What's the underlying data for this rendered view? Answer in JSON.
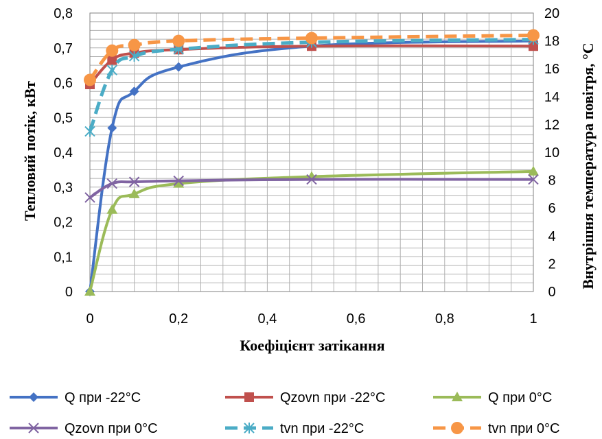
{
  "chart_data": {
    "type": "line",
    "xlabel": "Коефіцієнт затікання",
    "ylabel": "Тепловий потік, кВт",
    "y2label": "Внутрішня температура повітря, °С",
    "xlim": [
      0,
      1
    ],
    "ylim": [
      0,
      0.8
    ],
    "y2lim": [
      0,
      20
    ],
    "x_ticks": [
      "0",
      "0,2",
      "0,4",
      "0,6",
      "0,8",
      "1"
    ],
    "y_ticks": [
      "0",
      "0,1",
      "0,2",
      "0,3",
      "0,4",
      "0,5",
      "0,6",
      "0,7",
      "0,8"
    ],
    "y2_ticks": [
      "0",
      "2",
      "4",
      "6",
      "8",
      "10",
      "12",
      "14",
      "16",
      "18",
      "20"
    ],
    "grid": true,
    "legend_position": "bottom",
    "series": [
      {
        "name": "Q при -22°С",
        "axis": "left",
        "color": "#4472C4",
        "marker": "diamond",
        "dash": "solid",
        "x": [
          0,
          0.05,
          0.1,
          0.2,
          0.5,
          1
        ],
        "y": [
          0,
          0.47,
          0.575,
          0.645,
          0.705,
          0.72
        ]
      },
      {
        "name": "Qzovn при -22°С",
        "axis": "left",
        "color": "#C0504D",
        "marker": "square",
        "dash": "solid",
        "x": [
          0,
          0.05,
          0.1,
          0.2,
          0.5,
          1
        ],
        "y": [
          0.595,
          0.665,
          0.685,
          0.695,
          0.705,
          0.705
        ]
      },
      {
        "name": "Q при 0°С",
        "axis": "left",
        "color": "#9BBB59",
        "marker": "triangle",
        "dash": "solid",
        "x": [
          0,
          0.05,
          0.1,
          0.2,
          0.5,
          1
        ],
        "y": [
          0,
          0.235,
          0.28,
          0.31,
          0.33,
          0.345
        ]
      },
      {
        "name": "Qzovn при 0°С",
        "axis": "left",
        "color": "#8064A2",
        "marker": "x",
        "dash": "solid",
        "x": [
          0,
          0.05,
          0.1,
          0.2,
          0.5,
          1
        ],
        "y": [
          0.27,
          0.31,
          0.315,
          0.318,
          0.322,
          0.322
        ]
      },
      {
        "name": "tvn при -22°С",
        "axis": "right",
        "color": "#4BACC6",
        "marker": "star",
        "dash": "dash",
        "x": [
          0,
          0.05,
          0.1,
          0.2,
          0.5,
          1
        ],
        "y": [
          11.5,
          15.9,
          16.9,
          17.4,
          17.9,
          18.1
        ]
      },
      {
        "name": "tvn при 0°С",
        "axis": "right",
        "color": "#F79646",
        "marker": "circle",
        "dash": "dash",
        "x": [
          0,
          0.05,
          0.1,
          0.2,
          0.5,
          1
        ],
        "y": [
          15.2,
          17.3,
          17.7,
          18.0,
          18.2,
          18.4
        ]
      }
    ]
  }
}
